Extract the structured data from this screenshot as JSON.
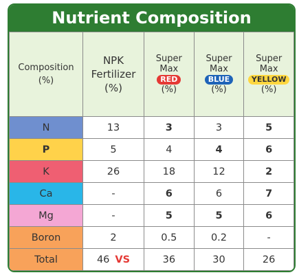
{
  "title": "Nutrient Composition",
  "colors": {
    "title_bg": "#2e7d32",
    "header_bg": "#e8f3dc",
    "vs": "#e53935"
  },
  "header": {
    "composition": "Composition",
    "composition_unit": "(%)",
    "npk_line1": "NPK",
    "npk_line2": "Fertilizer",
    "npk_unit": "(%)",
    "products": [
      {
        "line1": "Super",
        "line2": "Max",
        "badge": "RED",
        "unit": "(%)"
      },
      {
        "line1": "Super",
        "line2": "Max",
        "badge": "BLUE",
        "unit": "(%)"
      },
      {
        "line1": "Super",
        "line2": "Max",
        "badge": "YELLOW",
        "unit": "(%)"
      }
    ]
  },
  "rows": [
    {
      "name": "N",
      "color": "#6f8fcf",
      "npk": "13",
      "red": "3",
      "blue": "3",
      "yellow": "5"
    },
    {
      "name": "P",
      "color": "#ffd24a",
      "npk": "5",
      "red": "4",
      "blue": "4",
      "yellow": "6"
    },
    {
      "name": "K",
      "color": "#ef5f72",
      "npk": "26",
      "red": "18",
      "blue": "12",
      "yellow": "2"
    },
    {
      "name": "Ca",
      "color": "#29b6e8",
      "npk": "-",
      "red": "6",
      "blue": "6",
      "yellow": "7"
    },
    {
      "name": "Mg",
      "color": "#f4a7d4",
      "npk": "-",
      "red": "5",
      "blue": "5",
      "yellow": "6"
    },
    {
      "name": "Boron",
      "color": "#f8a25a",
      "npk": "2",
      "red": "0.5",
      "blue": "0.2",
      "yellow": "-"
    },
    {
      "name": "Total",
      "color": "#f8a25a",
      "npk": "46",
      "red": "36",
      "blue": "30",
      "yellow": "26"
    }
  ],
  "vs_label": "VS"
}
